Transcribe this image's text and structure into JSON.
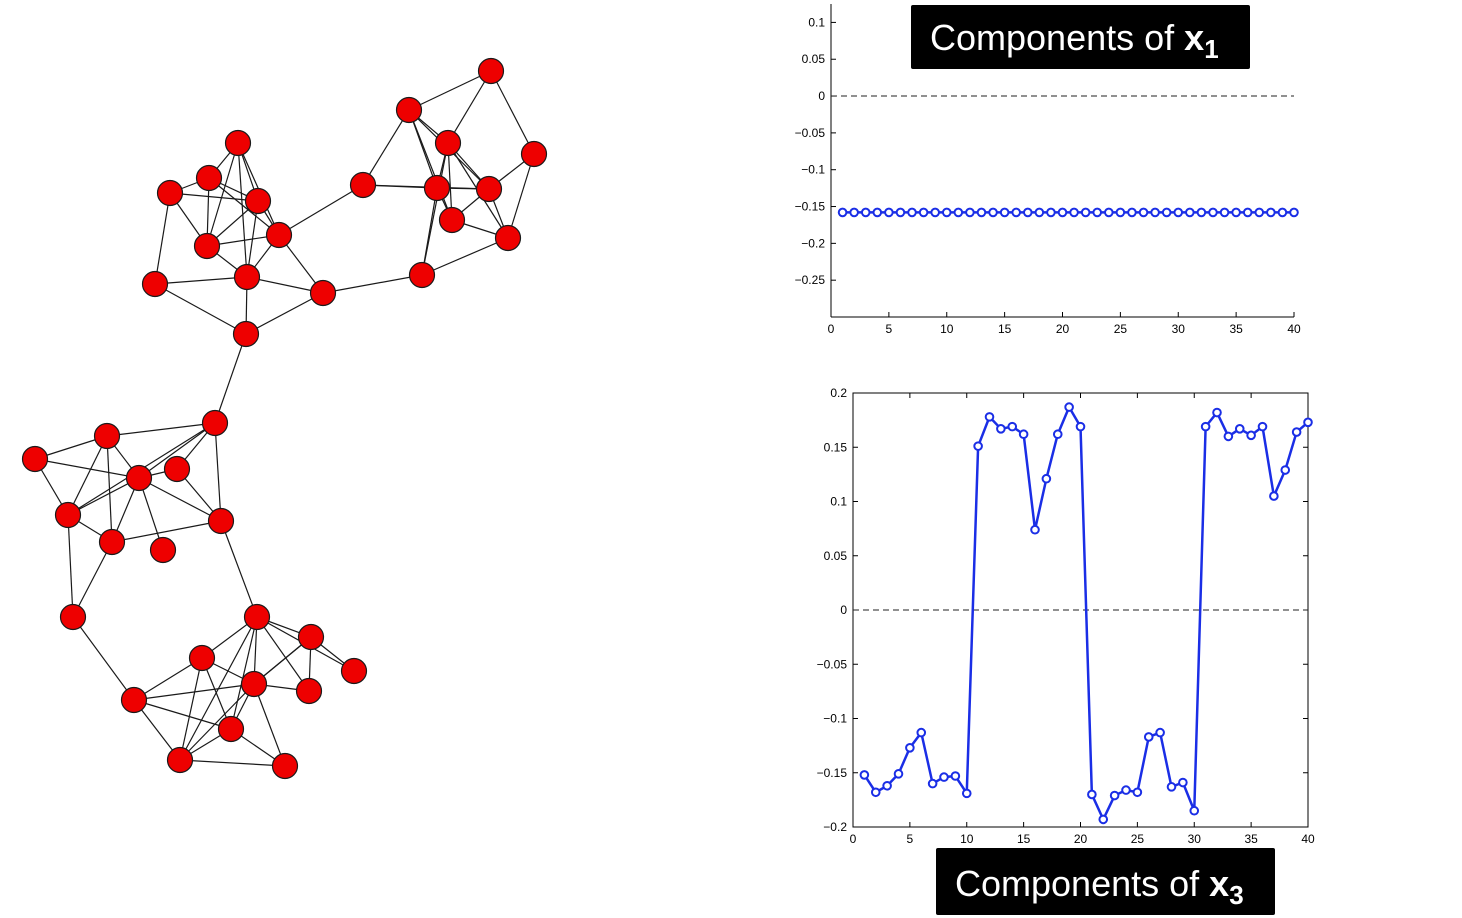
{
  "graph": {
    "node_count": 40,
    "node_color": "#ee0000",
    "edge_color": "#1a1a1a"
  },
  "chart_data": [
    {
      "type": "line",
      "banner": {
        "prefix": "Components of ",
        "var": "x",
        "sub": "1"
      },
      "title": "",
      "xlabel": "",
      "ylabel": "",
      "xlim": [
        0,
        40
      ],
      "ylim": [
        -0.3,
        0.125
      ],
      "xticks": [
        0,
        5,
        10,
        15,
        20,
        25,
        30,
        35,
        40
      ],
      "yticks": [
        0.1,
        0.05,
        0,
        -0.05,
        -0.1,
        -0.15,
        -0.2,
        -0.25
      ],
      "ytick_labels": [
        "0.1",
        "0.05",
        "0",
        "−0.05",
        "−0.1",
        "−0.15",
        "−0.2",
        "−0.25"
      ],
      "reference_line": 0,
      "color": "#1a2ee6",
      "box": "open",
      "series": [
        {
          "x": [
            1,
            2,
            3,
            4,
            5,
            6,
            7,
            8,
            9,
            10,
            11,
            12,
            13,
            14,
            15,
            16,
            17,
            18,
            19,
            20,
            21,
            22,
            23,
            24,
            25,
            26,
            27,
            28,
            29,
            30,
            31,
            32,
            33,
            34,
            35,
            36,
            37,
            38,
            39,
            40
          ],
          "values": [
            -0.158,
            -0.158,
            -0.158,
            -0.158,
            -0.158,
            -0.158,
            -0.158,
            -0.158,
            -0.158,
            -0.158,
            -0.158,
            -0.158,
            -0.158,
            -0.158,
            -0.158,
            -0.158,
            -0.158,
            -0.158,
            -0.158,
            -0.158,
            -0.158,
            -0.158,
            -0.158,
            -0.158,
            -0.158,
            -0.158,
            -0.158,
            -0.158,
            -0.158,
            -0.158,
            -0.158,
            -0.158,
            -0.158,
            -0.158,
            -0.158,
            -0.158,
            -0.158,
            -0.158,
            -0.158,
            -0.158
          ]
        }
      ]
    },
    {
      "type": "line",
      "banner": {
        "prefix": "Components of ",
        "var": "x",
        "sub": "3"
      },
      "title": "",
      "xlabel": "",
      "ylabel": "",
      "xlim": [
        0,
        40
      ],
      "ylim": [
        -0.2,
        0.2
      ],
      "xticks": [
        0,
        5,
        10,
        15,
        20,
        25,
        30,
        35,
        40
      ],
      "yticks": [
        0.2,
        0.15,
        0.1,
        0.05,
        0,
        -0.05,
        -0.1,
        -0.15,
        -0.2
      ],
      "ytick_labels": [
        "0.2",
        "0.15",
        "0.1",
        "0.05",
        "0",
        "−0.05",
        "−0.1",
        "−0.15",
        "−0.2"
      ],
      "reference_line": 0,
      "color": "#1a2ee6",
      "box": "closed",
      "series": [
        {
          "x": [
            1,
            2,
            3,
            4,
            5,
            6,
            7,
            8,
            9,
            10,
            11,
            12,
            13,
            14,
            15,
            16,
            17,
            18,
            19,
            20,
            21,
            22,
            23,
            24,
            25,
            26,
            27,
            28,
            29,
            30,
            31,
            32,
            33,
            34,
            35,
            36,
            37,
            38,
            39,
            40
          ],
          "values": [
            -0.152,
            -0.168,
            -0.162,
            -0.151,
            -0.127,
            -0.113,
            -0.16,
            -0.154,
            -0.153,
            -0.169,
            0.151,
            0.178,
            0.167,
            0.169,
            0.162,
            0.074,
            0.121,
            0.162,
            0.187,
            0.169,
            -0.17,
            -0.193,
            -0.171,
            -0.166,
            -0.168,
            -0.117,
            -0.113,
            -0.163,
            -0.159,
            -0.185,
            0.169,
            0.182,
            0.16,
            0.167,
            0.161,
            0.169,
            0.105,
            0.129,
            0.164,
            0.173
          ]
        }
      ]
    }
  ]
}
